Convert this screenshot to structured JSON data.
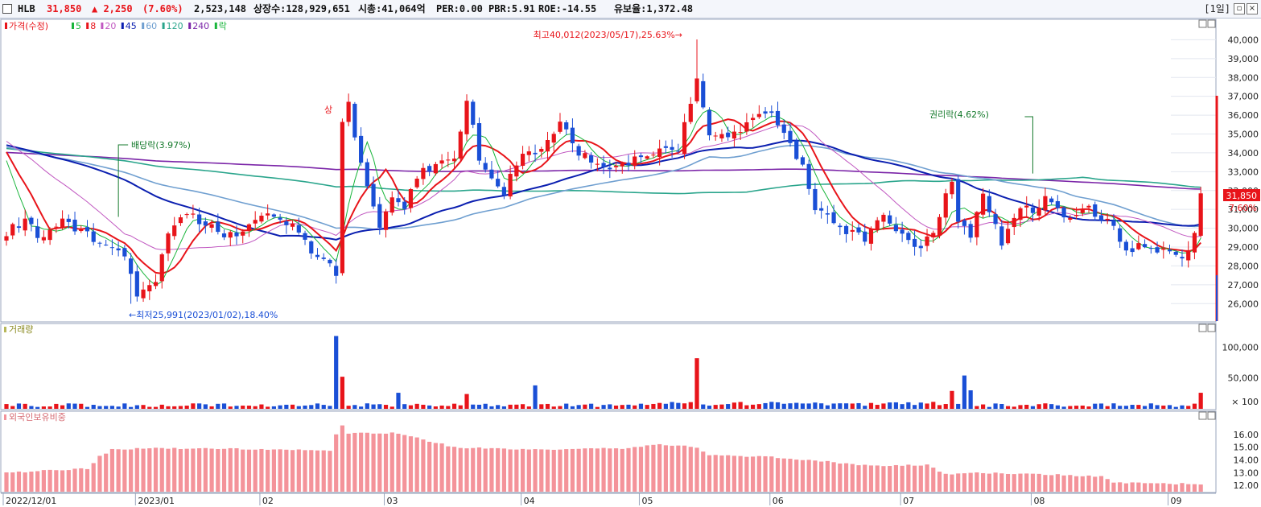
{
  "header": {
    "name": "HLB",
    "price": "31,850",
    "change": "▲ 2,250",
    "change_pct": "(7.60%)",
    "volume": "2,523,148",
    "listed": "상장수:128,929,651",
    "mktcap": "시총:41,064억",
    "per": "PER:0.00",
    "pbr": "PBR:5.91",
    "roe": "ROE:-14.55",
    "float_ratio": "유보율:1,372.48",
    "period": "[1일]"
  },
  "colors": {
    "up": "#e8141a",
    "down": "#1a4fd6",
    "ma5": "#19b53b",
    "ma8": "#e8141a",
    "ma20": "#c158c1",
    "ma45": "#0b1fb0",
    "ma60": "#6f9fd0",
    "ma120": "#2aa58c",
    "ma240": "#7b25a8",
    "foreign": "#f4939a"
  },
  "price_panel": {
    "legend": [
      {
        "text": "가격(수정)",
        "color": "#e8141a"
      },
      {
        "text": "5",
        "color": "#19b53b"
      },
      {
        "text": "8",
        "color": "#e8141a"
      },
      {
        "text": "20",
        "color": "#c158c1"
      },
      {
        "text": "45",
        "color": "#0b1fb0"
      },
      {
        "text": "60",
        "color": "#6f9fd0"
      },
      {
        "text": "120",
        "color": "#2aa58c"
      },
      {
        "text": "240",
        "color": "#7b25a8"
      },
      {
        "text": "락",
        "color": "#19b53b"
      }
    ],
    "ann_high": "최고40,012(2023/05/17),25.63%→",
    "ann_low": "←최저25,991(2023/01/02),18.40%",
    "ann_div": "배당락(3.97%)",
    "ann_rights": "권리락(4.62%)",
    "ann_upper": "상",
    "last_price": "31,850",
    "last_pct": "7.60%"
  },
  "volume_panel": {
    "title": "거래량",
    "unit": "× 100"
  },
  "foreign_panel": {
    "title": "외국인보유비중"
  },
  "chart_data": [
    {
      "type": "candlestick",
      "title": "가격(수정)",
      "ylim": [
        25200,
        41000
      ],
      "yticks": [
        26000,
        27000,
        28000,
        29000,
        30000,
        31000,
        32000,
        33000,
        34000,
        35000,
        36000,
        37000,
        38000,
        39000,
        40000
      ],
      "x_labels": [
        {
          "i": 0,
          "text": "2022/12/01"
        },
        {
          "i": 21,
          "text": "2023/01"
        },
        {
          "i": 41,
          "text": "02"
        },
        {
          "i": 61,
          "text": "03"
        },
        {
          "i": 83,
          "text": "04"
        },
        {
          "i": 102,
          "text": "05"
        },
        {
          "i": 123,
          "text": "06"
        },
        {
          "i": 144,
          "text": "07"
        },
        {
          "i": 165,
          "text": "08"
        },
        {
          "i": 187,
          "text": "09"
        }
      ],
      "anchors": [
        [
          0,
          29800
        ],
        [
          3,
          30400
        ],
        [
          6,
          29300
        ],
        [
          9,
          30600
        ],
        [
          12,
          29700
        ],
        [
          16,
          29300
        ],
        [
          19,
          28700
        ],
        [
          20,
          27600
        ],
        [
          21,
          26500
        ],
        [
          24,
          27300
        ],
        [
          26,
          29900
        ],
        [
          29,
          30700
        ],
        [
          33,
          30000
        ],
        [
          37,
          29500
        ],
        [
          42,
          31000
        ],
        [
          46,
          30200
        ],
        [
          50,
          28400
        ],
        [
          53,
          27700
        ],
        [
          54,
          35600
        ],
        [
          55,
          36500
        ],
        [
          57,
          33500
        ],
        [
          60,
          30000
        ],
        [
          62,
          31800
        ],
        [
          64,
          31000
        ],
        [
          66,
          32800
        ],
        [
          70,
          33700
        ],
        [
          72,
          33700
        ],
        [
          74,
          37000
        ],
        [
          76,
          33700
        ],
        [
          80,
          32000
        ],
        [
          83,
          34000
        ],
        [
          86,
          34000
        ],
        [
          89,
          35800
        ],
        [
          92,
          34000
        ],
        [
          96,
          33000
        ],
        [
          100,
          33500
        ],
        [
          104,
          34000
        ],
        [
          108,
          34200
        ],
        [
          111,
          38000
        ],
        [
          113,
          35000
        ],
        [
          117,
          35000
        ],
        [
          120,
          36000
        ],
        [
          123,
          36300
        ],
        [
          126,
          34300
        ],
        [
          128,
          33500
        ],
        [
          130,
          31000
        ],
        [
          134,
          30000
        ],
        [
          138,
          29500
        ],
        [
          141,
          30800
        ],
        [
          143,
          30000
        ],
        [
          146,
          28800
        ],
        [
          149,
          29700
        ],
        [
          152,
          32600
        ],
        [
          153,
          30300
        ],
        [
          155,
          29500
        ],
        [
          157,
          32000
        ],
        [
          160,
          29000
        ],
        [
          163,
          31200
        ],
        [
          165,
          30800
        ],
        [
          167,
          31800
        ],
        [
          170,
          30600
        ],
        [
          174,
          31000
        ],
        [
          178,
          30000
        ],
        [
          180,
          28700
        ],
        [
          183,
          29100
        ],
        [
          186,
          28700
        ],
        [
          189,
          28400
        ],
        [
          191,
          29600
        ],
        [
          192,
          31850
        ]
      ],
      "ma_series": [
        {
          "name": "5",
          "period": 5,
          "color": "#19b53b"
        },
        {
          "name": "8",
          "period": 8,
          "color": "#e8141a"
        },
        {
          "name": "20",
          "period": 20,
          "color": "#c158c1"
        },
        {
          "name": "45",
          "period": 45,
          "color": "#0b1fb0"
        },
        {
          "name": "60",
          "period": 60,
          "color": "#6f9fd0"
        },
        {
          "name": "120",
          "period": 120,
          "color": "#2aa58c"
        },
        {
          "name": "240",
          "period": 240,
          "color": "#7b25a8"
        }
      ],
      "annotations": {
        "high": {
          "i": 111,
          "value": 40012,
          "text": "최고40,012(2023/05/17),25.63%"
        },
        "low": {
          "i": 20,
          "value": 25991,
          "text": "최저25,991(2023/01/02),18.40%"
        },
        "dividend": {
          "i": 18,
          "text": "배당락(3.97%)"
        },
        "rights": {
          "i": 165,
          "text": "권리락(4.62%)"
        }
      }
    },
    {
      "type": "bar",
      "title": "거래량",
      "unit": "× 100",
      "ylim": [
        0,
        120000
      ],
      "yticks": [
        50000,
        100000
      ],
      "spikes": [
        [
          53,
          118000
        ],
        [
          54,
          52000
        ],
        [
          111,
          82000
        ],
        [
          154,
          54000
        ],
        [
          155,
          30000
        ],
        [
          74,
          24000
        ],
        [
          63,
          26000
        ],
        [
          85,
          38000
        ],
        [
          152,
          29000
        ],
        [
          192,
          26000
        ]
      ]
    },
    {
      "type": "bar",
      "title": "외국인보유비중",
      "ylim": [
        11.5,
        17.5
      ],
      "yticks": [
        12.0,
        13.0,
        14.0,
        15.0,
        16.0
      ],
      "anchors": [
        [
          0,
          13.0
        ],
        [
          13,
          13.3
        ],
        [
          15,
          14.3
        ],
        [
          17,
          14.8
        ],
        [
          23,
          14.9
        ],
        [
          35,
          14.9
        ],
        [
          52,
          14.7
        ],
        [
          53,
          16.0
        ],
        [
          54,
          16.7
        ],
        [
          55,
          16.1
        ],
        [
          62,
          16.1
        ],
        [
          66,
          15.7
        ],
        [
          72,
          15.0
        ],
        [
          82,
          14.8
        ],
        [
          99,
          14.9
        ],
        [
          105,
          15.2
        ],
        [
          111,
          15.0
        ],
        [
          113,
          14.4
        ],
        [
          124,
          14.2
        ],
        [
          140,
          13.5
        ],
        [
          148,
          13.6
        ],
        [
          150,
          13.1
        ],
        [
          152,
          12.8
        ],
        [
          154,
          13.0
        ],
        [
          165,
          12.9
        ],
        [
          176,
          12.7
        ],
        [
          178,
          12.2
        ],
        [
          192,
          12.1
        ]
      ]
    }
  ]
}
